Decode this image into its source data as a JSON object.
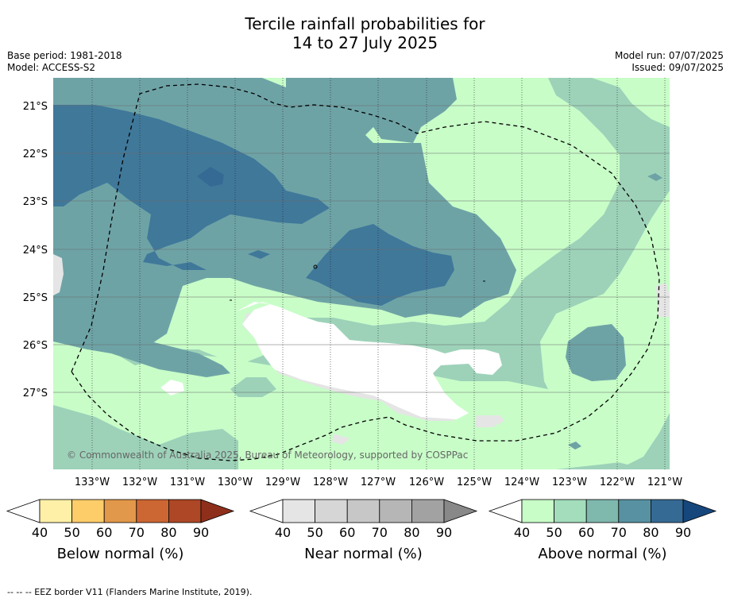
{
  "header": {
    "title_line1": "Tercile rainfall probabilities for",
    "title_line2": "14 to 27 July 2025",
    "base_period": "Base period: 1981-2018",
    "model": "Model: ACCESS-S2",
    "model_run": "Model run: 07/07/2025",
    "issued": "Issued: 09/07/2025"
  },
  "map": {
    "lat_labels": [
      "21°S",
      "22°S",
      "23°S",
      "24°S",
      "25°S",
      "26°S",
      "27°S"
    ],
    "lon_labels": [
      "133°W",
      "132°W",
      "131°W",
      "130°W",
      "129°W",
      "128°W",
      "127°W",
      "126°W",
      "125°W",
      "124°W",
      "123°W",
      "122°W",
      "121°W"
    ],
    "copyright": "© Commonwealth of Australia 2025, Bureau of Meteorology, supported by COSPPac"
  },
  "colorbars": [
    {
      "name": "below",
      "title": "Below normal (%)",
      "ticks": [
        "40",
        "50",
        "60",
        "70",
        "80",
        "90"
      ],
      "colors": [
        "#fff0a8",
        "#fdcd6a",
        "#e2984a",
        "#cc6632",
        "#ad4726",
        "#8e2f1c"
      ]
    },
    {
      "name": "near",
      "title": "Near normal (%)",
      "ticks": [
        "40",
        "50",
        "60",
        "70",
        "80",
        "90"
      ],
      "colors": [
        "#e5e5e5",
        "#d6d6d6",
        "#c7c7c7",
        "#b6b6b6",
        "#a2a2a2",
        "#888888"
      ]
    },
    {
      "name": "above",
      "title": "Above normal (%)",
      "ticks": [
        "40",
        "50",
        "60",
        "70",
        "80",
        "90"
      ],
      "colors": [
        "#c8fdc8",
        "#a3ddbc",
        "#7fb8ad",
        "#5892a2",
        "#356a94",
        "#16477c"
      ]
    }
  ],
  "footer": "--  --  -- EEZ border V11 (Flanders Marine Institute, 2019)."
}
